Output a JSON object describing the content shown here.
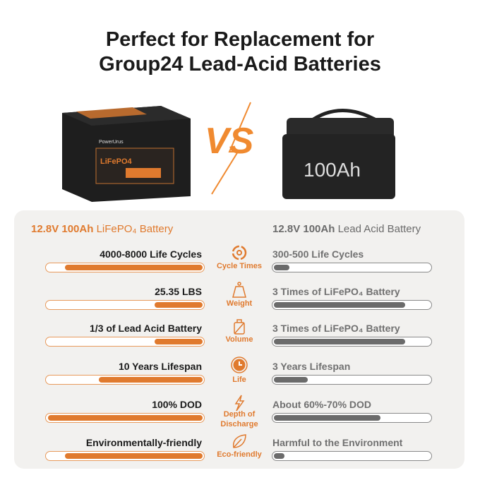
{
  "title": {
    "line1": "Perfect for Replacement for",
    "line2": "Group24 Lead-Acid Batteries"
  },
  "images": {
    "left_battery_label": "LiFePO4",
    "left_battery_brand": "PowerUrus",
    "right_battery_label": "100Ah",
    "vs": "VS"
  },
  "header": {
    "left_bold": "12.8V 100Ah",
    "left_rest": "LiFePO₄ Battery",
    "right_bold": "12.8V 100Ah",
    "right_rest": "Lead Acid Battery"
  },
  "colors": {
    "accent": "#e07a2e",
    "gray": "#6b6b6b",
    "panel": "#f2f1ef"
  },
  "rows": [
    {
      "category": "Cycle Times",
      "icon": "cycle-icon",
      "left": "4000-8000 Life Cycles",
      "left_fill": 0.89,
      "right": "300-500 Life Cycles",
      "right_fill": 0.1
    },
    {
      "category": "Weight",
      "icon": "weight-icon",
      "left": "25.35 LBS",
      "left_fill": 0.31,
      "right": "3 Times of LiFePO₄ Battery",
      "right_fill": 0.85
    },
    {
      "category": "Volume",
      "icon": "volume-icon",
      "left": "1/3 of Lead Acid Battery",
      "left_fill": 0.31,
      "right": "3 Times of LiFePO₄ Battery",
      "right_fill": 0.85
    },
    {
      "category": "Life",
      "icon": "clock-icon",
      "left": "10 Years Lifespan",
      "left_fill": 0.67,
      "right": "3 Years Lifespan",
      "right_fill": 0.22
    },
    {
      "category": "Depth of Discharge",
      "icon": "lightning-icon",
      "left": "100% DOD",
      "left_fill": 1.0,
      "right": "About 60%-70% DOD",
      "right_fill": 0.69
    },
    {
      "category": "Eco-friendly",
      "icon": "leaf-icon",
      "left": "Environmentally-friendly",
      "left_fill": 0.89,
      "right": "Harmful to the Environment",
      "right_fill": 0.07
    }
  ]
}
